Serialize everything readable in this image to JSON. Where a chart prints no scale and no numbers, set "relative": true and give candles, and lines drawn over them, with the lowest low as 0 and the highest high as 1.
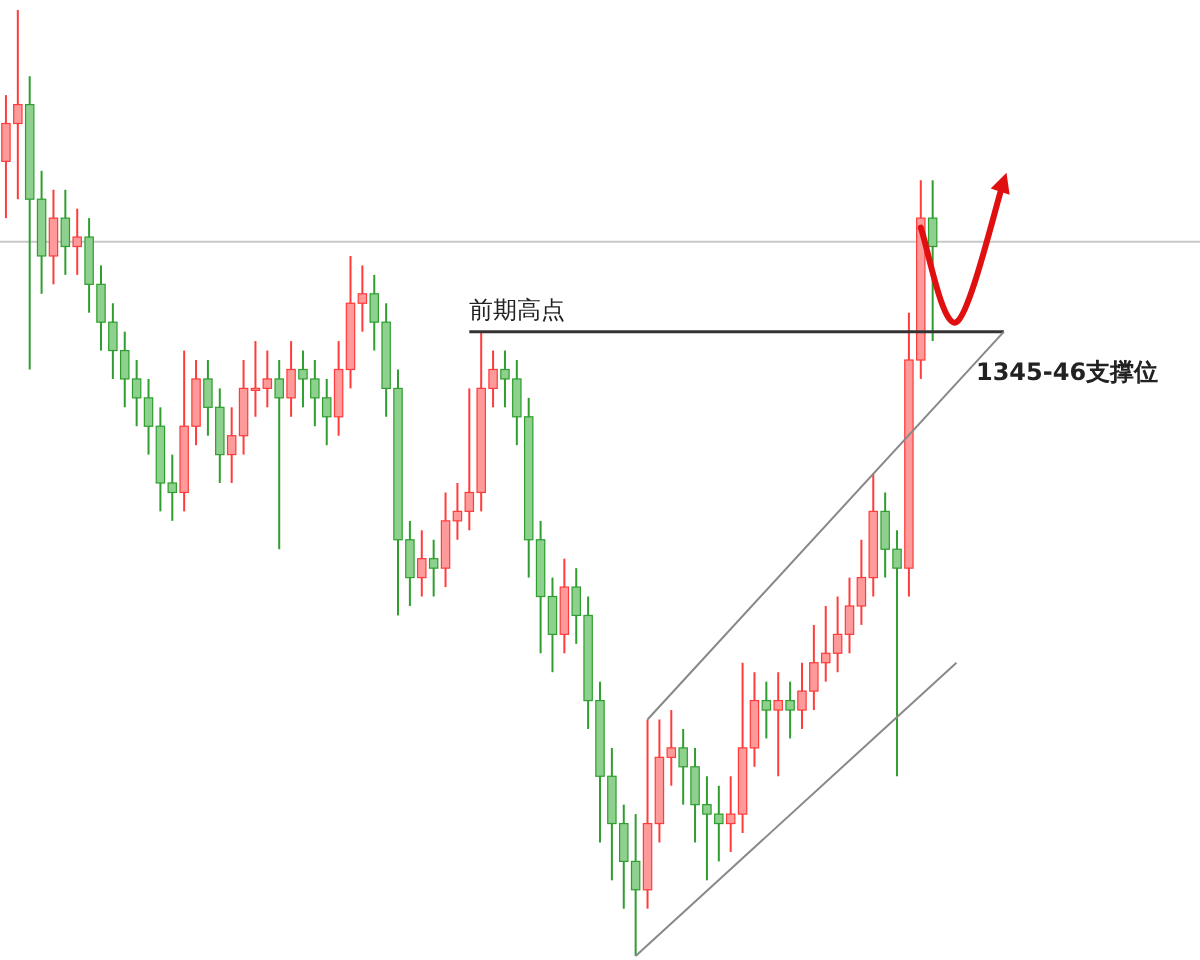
{
  "chart_data": {
    "type": "candlestick",
    "relative": true,
    "categories": [
      null,
      null,
      null,
      null,
      null,
      null,
      null,
      null,
      null,
      null,
      null,
      null,
      null,
      null,
      null,
      null,
      null,
      null,
      null,
      null,
      null,
      null,
      null,
      null,
      null,
      null,
      null,
      null,
      null,
      null,
      null,
      null,
      null,
      null,
      null,
      null,
      null,
      null,
      null,
      null,
      null,
      null,
      null,
      null,
      null,
      null,
      null,
      null,
      null,
      null,
      null,
      null,
      null,
      null,
      null,
      null,
      null,
      null,
      null,
      null,
      null,
      null,
      null,
      null,
      null,
      null,
      null,
      null,
      null,
      null,
      null,
      null,
      null,
      null,
      null,
      null,
      null,
      null,
      null,
      null,
      null,
      null,
      null,
      null,
      null,
      null,
      null,
      null,
      null,
      null,
      null,
      null,
      null,
      null,
      null,
      null,
      null,
      null,
      null,
      null,
      null
    ],
    "ohlc": [
      [
        0.84,
        0.91,
        0.78,
        0.88
      ],
      [
        0.88,
        1.0,
        0.8,
        0.9
      ],
      [
        0.9,
        0.93,
        0.62,
        0.8
      ],
      [
        0.8,
        0.83,
        0.7,
        0.74
      ],
      [
        0.74,
        0.81,
        0.71,
        0.78
      ],
      [
        0.78,
        0.81,
        0.72,
        0.75
      ],
      [
        0.75,
        0.79,
        0.72,
        0.76
      ],
      [
        0.76,
        0.78,
        0.68,
        0.71
      ],
      [
        0.71,
        0.73,
        0.64,
        0.67
      ],
      [
        0.67,
        0.69,
        0.61,
        0.64
      ],
      [
        0.64,
        0.66,
        0.58,
        0.61
      ],
      [
        0.61,
        0.63,
        0.56,
        0.59
      ],
      [
        0.59,
        0.61,
        0.53,
        0.56
      ],
      [
        0.56,
        0.58,
        0.47,
        0.5
      ],
      [
        0.5,
        0.53,
        0.46,
        0.49
      ],
      [
        0.49,
        0.64,
        0.47,
        0.56
      ],
      [
        0.56,
        0.63,
        0.54,
        0.61
      ],
      [
        0.61,
        0.63,
        0.55,
        0.58
      ],
      [
        0.58,
        0.6,
        0.5,
        0.53
      ],
      [
        0.53,
        0.58,
        0.5,
        0.55
      ],
      [
        0.55,
        0.63,
        0.53,
        0.6
      ],
      [
        0.6,
        0.65,
        0.57,
        0.6
      ],
      [
        0.6,
        0.64,
        0.58,
        0.61
      ],
      [
        0.61,
        0.63,
        0.43,
        0.59
      ],
      [
        0.59,
        0.65,
        0.57,
        0.62
      ],
      [
        0.62,
        0.64,
        0.58,
        0.61
      ],
      [
        0.61,
        0.63,
        0.56,
        0.59
      ],
      [
        0.59,
        0.61,
        0.54,
        0.57
      ],
      [
        0.57,
        0.65,
        0.55,
        0.62
      ],
      [
        0.62,
        0.74,
        0.6,
        0.69
      ],
      [
        0.69,
        0.73,
        0.66,
        0.7
      ],
      [
        0.7,
        0.72,
        0.64,
        0.67
      ],
      [
        0.67,
        0.69,
        0.57,
        0.6
      ],
      [
        0.6,
        0.62,
        0.36,
        0.44
      ],
      [
        0.44,
        0.46,
        0.37,
        0.4
      ],
      [
        0.4,
        0.45,
        0.38,
        0.42
      ],
      [
        0.42,
        0.44,
        0.38,
        0.41
      ],
      [
        0.41,
        0.49,
        0.39,
        0.46
      ],
      [
        0.46,
        0.5,
        0.44,
        0.47
      ],
      [
        0.47,
        0.6,
        0.45,
        0.49
      ],
      [
        0.49,
        0.66,
        0.47,
        0.6
      ],
      [
        0.6,
        0.64,
        0.58,
        0.62
      ],
      [
        0.62,
        0.64,
        0.58,
        0.61
      ],
      [
        0.61,
        0.63,
        0.54,
        0.57
      ],
      [
        0.57,
        0.59,
        0.4,
        0.44
      ],
      [
        0.44,
        0.46,
        0.32,
        0.38
      ],
      [
        0.38,
        0.4,
        0.3,
        0.34
      ],
      [
        0.34,
        0.42,
        0.32,
        0.39
      ],
      [
        0.39,
        0.41,
        0.33,
        0.36
      ],
      [
        0.36,
        0.38,
        0.24,
        0.27
      ],
      [
        0.27,
        0.29,
        0.12,
        0.19
      ],
      [
        0.19,
        0.22,
        0.08,
        0.14
      ],
      [
        0.14,
        0.16,
        0.05,
        0.1
      ],
      [
        0.1,
        0.15,
        0.0,
        0.07
      ],
      [
        0.07,
        0.25,
        0.05,
        0.14
      ],
      [
        0.14,
        0.25,
        0.12,
        0.21
      ],
      [
        0.21,
        0.26,
        0.18,
        0.22
      ],
      [
        0.22,
        0.24,
        0.16,
        0.2
      ],
      [
        0.2,
        0.22,
        0.12,
        0.16
      ],
      [
        0.16,
        0.19,
        0.08,
        0.15
      ],
      [
        0.15,
        0.18,
        0.1,
        0.14
      ],
      [
        0.14,
        0.19,
        0.11,
        0.15
      ],
      [
        0.15,
        0.31,
        0.13,
        0.22
      ],
      [
        0.22,
        0.3,
        0.2,
        0.27
      ],
      [
        0.27,
        0.29,
        0.23,
        0.26
      ],
      [
        0.26,
        0.3,
        0.19,
        0.27
      ],
      [
        0.27,
        0.29,
        0.23,
        0.26
      ],
      [
        0.26,
        0.31,
        0.24,
        0.28
      ],
      [
        0.28,
        0.35,
        0.26,
        0.31
      ],
      [
        0.31,
        0.37,
        0.29,
        0.32
      ],
      [
        0.32,
        0.38,
        0.3,
        0.34
      ],
      [
        0.34,
        0.4,
        0.32,
        0.37
      ],
      [
        0.37,
        0.44,
        0.35,
        0.4
      ],
      [
        0.4,
        0.51,
        0.38,
        0.47
      ],
      [
        0.47,
        0.49,
        0.4,
        0.43
      ],
      [
        0.43,
        0.45,
        0.19,
        0.41
      ],
      [
        0.41,
        0.68,
        0.38,
        0.63
      ],
      [
        0.63,
        0.82,
        0.61,
        0.78
      ],
      [
        0.78,
        0.82,
        0.65,
        0.75
      ],
      null,
      null,
      null,
      null,
      null,
      null,
      null,
      null,
      null,
      null,
      null,
      null,
      null,
      null,
      null,
      null,
      null,
      null,
      null,
      null,
      null,
      null
    ],
    "series": [
      {
        "type": "line",
        "color": "#333333",
        "values": [
          null,
          null,
          null,
          null,
          null,
          null,
          null,
          null,
          null,
          null,
          null,
          null,
          null,
          null,
          null,
          null,
          null,
          null,
          null,
          null,
          null,
          null,
          null,
          null,
          null,
          null,
          null,
          null,
          null,
          null,
          null,
          null,
          null,
          null,
          null,
          null,
          null,
          null,
          null,
          0.66,
          null,
          null,
          null,
          null,
          null,
          null,
          null,
          null,
          null,
          null,
          null,
          null,
          null,
          null,
          null,
          null,
          null,
          null,
          null,
          null,
          null,
          null,
          null,
          null,
          null,
          null,
          null,
          null,
          null,
          null,
          null,
          null,
          null,
          null,
          null,
          null,
          null,
          null,
          null,
          null,
          null,
          null,
          null,
          null,
          0.66,
          null,
          null,
          null,
          null,
          null,
          null,
          null,
          null,
          null,
          null,
          null,
          null,
          null,
          null,
          null,
          null
        ]
      },
      {
        "type": "line",
        "color": "#888888",
        "values": [
          null,
          null,
          null,
          null,
          null,
          null,
          null,
          null,
          null,
          null,
          null,
          null,
          null,
          null,
          null,
          null,
          null,
          null,
          null,
          null,
          null,
          null,
          null,
          null,
          null,
          null,
          null,
          null,
          null,
          null,
          null,
          null,
          null,
          null,
          null,
          null,
          null,
          null,
          null,
          null,
          null,
          null,
          null,
          null,
          null,
          null,
          null,
          null,
          null,
          null,
          null,
          null,
          null,
          null,
          0.25,
          null,
          null,
          null,
          null,
          null,
          null,
          null,
          null,
          null,
          null,
          null,
          null,
          null,
          null,
          null,
          null,
          null,
          null,
          null,
          null,
          null,
          null,
          null,
          null,
          null,
          null,
          null,
          null,
          null,
          0.66,
          null,
          null,
          null,
          null,
          null,
          null,
          null,
          null,
          null,
          null,
          null,
          null,
          null,
          null,
          null,
          null
        ]
      },
      {
        "type": "line",
        "color": "#888888",
        "values": [
          null,
          null,
          null,
          null,
          null,
          null,
          null,
          null,
          null,
          null,
          null,
          null,
          null,
          null,
          null,
          null,
          null,
          null,
          null,
          null,
          null,
          null,
          null,
          null,
          null,
          null,
          null,
          null,
          null,
          null,
          null,
          null,
          null,
          null,
          null,
          null,
          null,
          null,
          null,
          null,
          null,
          null,
          null,
          null,
          null,
          null,
          null,
          null,
          null,
          null,
          null,
          null,
          null,
          0.0,
          null,
          null,
          null,
          null,
          null,
          null,
          null,
          null,
          null,
          null,
          null,
          null,
          null,
          null,
          null,
          null,
          null,
          null,
          null,
          null,
          null,
          null,
          null,
          null,
          null,
          null,
          0.31,
          null,
          null,
          null,
          null,
          null,
          null,
          null,
          null,
          null,
          null,
          null,
          null,
          null,
          null,
          null,
          null,
          null,
          null,
          null,
          null
        ]
      },
      {
        "type": "line",
        "color": "#e01010",
        "values": [
          null,
          null,
          null,
          null,
          null,
          null,
          null,
          null,
          null,
          null,
          null,
          null,
          null,
          null,
          null,
          null,
          null,
          null,
          null,
          null,
          null,
          null,
          null,
          null,
          null,
          null,
          null,
          null,
          null,
          null,
          null,
          null,
          null,
          null,
          null,
          null,
          null,
          null,
          null,
          null,
          null,
          null,
          null,
          null,
          null,
          null,
          null,
          null,
          null,
          null,
          null,
          null,
          null,
          null,
          null,
          null,
          null,
          null,
          null,
          null,
          null,
          null,
          null,
          null,
          null,
          null,
          null,
          null,
          null,
          null,
          null,
          null,
          null,
          null,
          null,
          null,
          null,
          0.77,
          null,
          null,
          0.67,
          null,
          null,
          null,
          0.82,
          null,
          null,
          null,
          null,
          null,
          null,
          null,
          null,
          null,
          null,
          null,
          null,
          null,
          null,
          null,
          null
        ]
      }
    ],
    "ref_lines": [
      {
        "axis": "y",
        "value": 0.755,
        "color": "#c8c8c8"
      }
    ],
    "annotations": [
      "前期高点",
      "1345-46支撑位"
    ]
  }
}
